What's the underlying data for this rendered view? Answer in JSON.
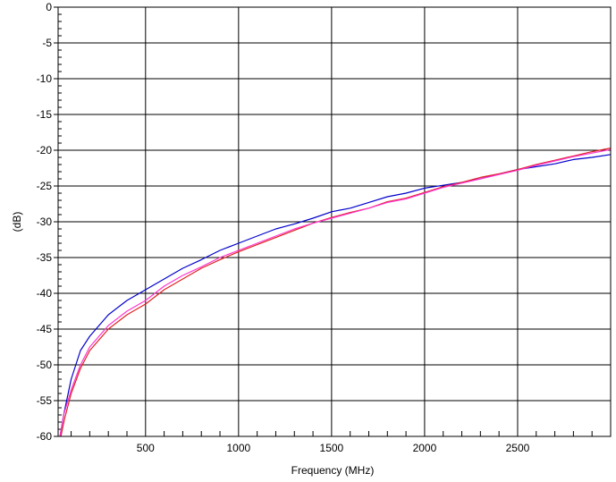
{
  "chart_data": {
    "type": "line",
    "title": "",
    "xlabel": "Frequency (MHz)",
    "ylabel": "(dB)",
    "xlim": [
      30,
      3000
    ],
    "ylim": [
      -60,
      0
    ],
    "x_ticks": [
      500,
      1000,
      1500,
      2000,
      2500
    ],
    "x_tick_labels": [
      "500",
      "1000",
      "1500",
      "2000",
      "2500"
    ],
    "y_ticks": [
      0,
      -5,
      -10,
      -15,
      -20,
      -25,
      -30,
      -35,
      -40,
      -45,
      -50,
      -55,
      -60
    ],
    "y_tick_labels": [
      "0",
      "-5",
      "-10",
      "-15",
      "-20",
      "-25",
      "-30",
      "-35",
      "-40",
      "-45",
      "-50",
      "-55",
      "-60"
    ],
    "grid": true,
    "legend": "none",
    "series": [
      {
        "color": "#0000cc",
        "x": [
          40,
          60,
          100,
          150,
          200,
          300,
          400,
          500,
          600,
          700,
          800,
          900,
          1000,
          1100,
          1200,
          1300,
          1400,
          1500,
          1600,
          1700,
          1800,
          1900,
          2000,
          2100,
          2200,
          2300,
          2400,
          2500,
          2600,
          2700,
          2800,
          2900,
          3000
        ],
        "y": [
          -60,
          -57,
          -52,
          -48,
          -46,
          -43,
          -41,
          -39.5,
          -38,
          -36.5,
          -35.3,
          -34,
          -33,
          -32,
          -31,
          -30.3,
          -29.5,
          -28.6,
          -28.1,
          -27.3,
          -26.5,
          -26,
          -25.3,
          -24.9,
          -24.5,
          -24,
          -23.3,
          -22.7,
          -22.3,
          -21.9,
          -21.3,
          -21,
          -20.6
        ]
      },
      {
        "color": "#dd2222",
        "x": [
          45,
          65,
          100,
          150,
          200,
          300,
          400,
          500,
          600,
          700,
          800,
          900,
          1000,
          1100,
          1200,
          1300,
          1400,
          1500,
          1600,
          1700,
          1800,
          1900,
          2000,
          2100,
          2200,
          2300,
          2400,
          2500,
          2600,
          2700,
          2800,
          2900,
          3000
        ],
        "y": [
          -60,
          -57.5,
          -54,
          -50.5,
          -48,
          -45,
          -43,
          -41.5,
          -39.5,
          -38,
          -36.5,
          -35.3,
          -34.2,
          -33.2,
          -32.2,
          -31.2,
          -30.2,
          -29.4,
          -28.7,
          -28.1,
          -27.2,
          -26.7,
          -25.9,
          -25.1,
          -24.5,
          -23.8,
          -23.3,
          -22.7,
          -22,
          -21.4,
          -20.8,
          -20.2,
          -19.7
        ]
      },
      {
        "color": "#ff33cc",
        "x": [
          40,
          60,
          100,
          150,
          200,
          300,
          400,
          500,
          600,
          700,
          800,
          900,
          1000,
          1100,
          1200,
          1300,
          1400,
          1500,
          1600,
          1700,
          1800,
          1900,
          2000,
          2100,
          2200,
          2300,
          2400,
          2500,
          2600,
          2700,
          2800,
          2900,
          3000
        ],
        "y": [
          -60,
          -57,
          -53.5,
          -50,
          -47.5,
          -44.5,
          -42.5,
          -41,
          -39,
          -37.5,
          -36.3,
          -35,
          -34,
          -33,
          -32,
          -31,
          -30.2,
          -29.5,
          -28.8,
          -28.1,
          -27.3,
          -26.8,
          -26,
          -25.2,
          -24.6,
          -24,
          -23.4,
          -22.8,
          -22.1,
          -21.5,
          -20.9,
          -20.4,
          -19.9
        ]
      }
    ]
  }
}
